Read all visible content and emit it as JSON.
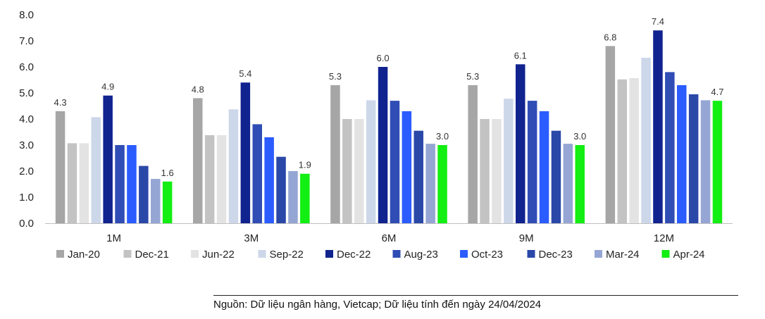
{
  "chart_data": {
    "type": "bar",
    "categories": [
      "1M",
      "3M",
      "6M",
      "9M",
      "12M"
    ],
    "ylim": [
      0,
      8
    ],
    "yticks": [
      "0.0",
      "1.0",
      "2.0",
      "3.0",
      "4.0",
      "5.0",
      "6.0",
      "7.0",
      "8.0"
    ],
    "grid": false,
    "legend_position": "bottom",
    "series": [
      {
        "name": "Jan-20",
        "color": "#a6a6a6",
        "values": [
          4.3,
          4.8,
          5.3,
          5.3,
          6.8
        ],
        "labeled": true
      },
      {
        "name": "Dec-21",
        "color": "#c3c3c3",
        "values": [
          3.07,
          3.38,
          4.0,
          4.0,
          5.52
        ],
        "labeled": false
      },
      {
        "name": "Jun-22",
        "color": "#e3e3e3",
        "values": [
          3.07,
          3.38,
          4.0,
          4.0,
          5.57
        ],
        "labeled": false
      },
      {
        "name": "Sep-22",
        "color": "#cdd7ea",
        "values": [
          4.07,
          4.37,
          4.72,
          4.78,
          6.35
        ],
        "labeled": false
      },
      {
        "name": "Dec-22",
        "color": "#10238f",
        "values": [
          4.9,
          5.4,
          6.0,
          6.1,
          7.4
        ],
        "labeled": true
      },
      {
        "name": "Aug-23",
        "color": "#2f4db5",
        "values": [
          3.0,
          3.8,
          4.7,
          4.7,
          5.8
        ],
        "labeled": false
      },
      {
        "name": "Oct-23",
        "color": "#2b5cff",
        "values": [
          3.0,
          3.3,
          4.3,
          4.3,
          5.3
        ],
        "labeled": false
      },
      {
        "name": "Dec-23",
        "color": "#2a48a8",
        "values": [
          2.2,
          2.55,
          3.55,
          3.55,
          4.95
        ],
        "labeled": false
      },
      {
        "name": "Mar-24",
        "color": "#95a6d4",
        "values": [
          1.7,
          2.0,
          3.05,
          3.05,
          4.72
        ],
        "labeled": false
      },
      {
        "name": "Apr-24",
        "color": "#13ee13",
        "values": [
          1.6,
          1.9,
          3.0,
          3.0,
          4.7
        ],
        "labeled": true
      }
    ]
  },
  "source_note": "Nguồn: Dữ liệu ngân hàng, Vietcap; Dữ liệu tính đến ngày 24/04/2024"
}
